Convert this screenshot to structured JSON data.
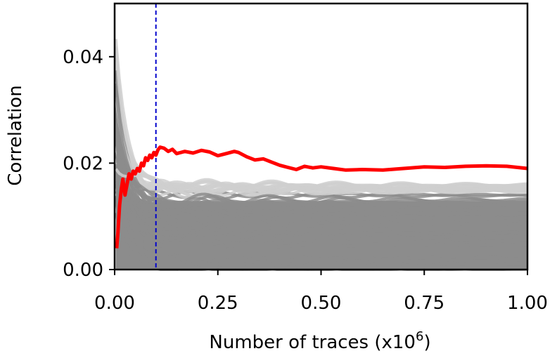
{
  "chart_data": {
    "type": "line",
    "title": "",
    "xlabel": "Number of traces (x10",
    "xlabel_superscript": "6",
    "xlabel_suffix": ")",
    "ylabel": "Correlation",
    "xlim": [
      0.0,
      1.0
    ],
    "ylim": [
      0.0,
      0.05
    ],
    "xticks": [
      "0.00",
      "0.25",
      "0.50",
      "0.75",
      "1.00"
    ],
    "yticks": [
      "0.00",
      "0.02",
      "0.04"
    ],
    "grid": false,
    "legend": "none",
    "marker_x": 0.1,
    "colors": {
      "highlight": "#ff0000",
      "background": "#8c8c8c",
      "marker": "#0000cc"
    },
    "series": [
      {
        "role": "highlighted key guess",
        "x": [
          0.005,
          0.008,
          0.012,
          0.016,
          0.02,
          0.025,
          0.03,
          0.035,
          0.04,
          0.045,
          0.05,
          0.055,
          0.06,
          0.065,
          0.07,
          0.075,
          0.08,
          0.085,
          0.09,
          0.095,
          0.1,
          0.105,
          0.11,
          0.12,
          0.13,
          0.14,
          0.15,
          0.17,
          0.19,
          0.21,
          0.23,
          0.25,
          0.27,
          0.29,
          0.3,
          0.32,
          0.34,
          0.36,
          0.38,
          0.4,
          0.42,
          0.44,
          0.46,
          0.48,
          0.5,
          0.53,
          0.56,
          0.6,
          0.65,
          0.7,
          0.75,
          0.8,
          0.85,
          0.9,
          0.95,
          1.0
        ],
        "y": [
          0.004,
          0.007,
          0.012,
          0.015,
          0.017,
          0.014,
          0.016,
          0.018,
          0.017,
          0.0185,
          0.018,
          0.019,
          0.0185,
          0.02,
          0.0195,
          0.021,
          0.0205,
          0.0215,
          0.021,
          0.022,
          0.0215,
          0.0225,
          0.023,
          0.0228,
          0.0222,
          0.0226,
          0.0218,
          0.0222,
          0.0219,
          0.0224,
          0.0221,
          0.0214,
          0.0218,
          0.0222,
          0.022,
          0.0212,
          0.0206,
          0.0208,
          0.0202,
          0.0196,
          0.0192,
          0.0188,
          0.0194,
          0.0191,
          0.0193,
          0.019,
          0.0187,
          0.0188,
          0.0187,
          0.019,
          0.0193,
          0.0192,
          0.0194,
          0.0195,
          0.0194,
          0.019
        ]
      }
    ]
  }
}
